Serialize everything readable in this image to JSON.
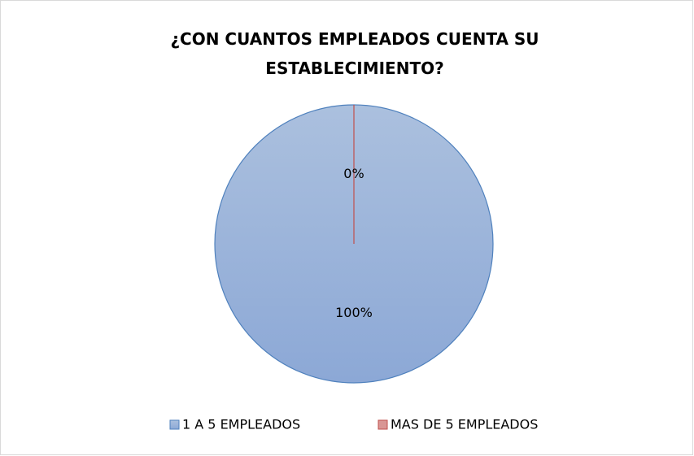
{
  "chart_data": {
    "type": "pie",
    "title": "¿CON CUANTOS EMPLEADOS CUENTA SU ESTABLECIMIENTO?",
    "categories": [
      "1 A 5 EMPLEADOS",
      "MAS DE 5 EMPLEADOS"
    ],
    "values": [
      100,
      0
    ],
    "value_labels": [
      "100%",
      "0%"
    ],
    "colors": [
      "#95b3d7",
      "#d99694"
    ],
    "edge_colors": [
      "#4f81bd",
      "#c0504d"
    ],
    "legend": "bottom"
  }
}
